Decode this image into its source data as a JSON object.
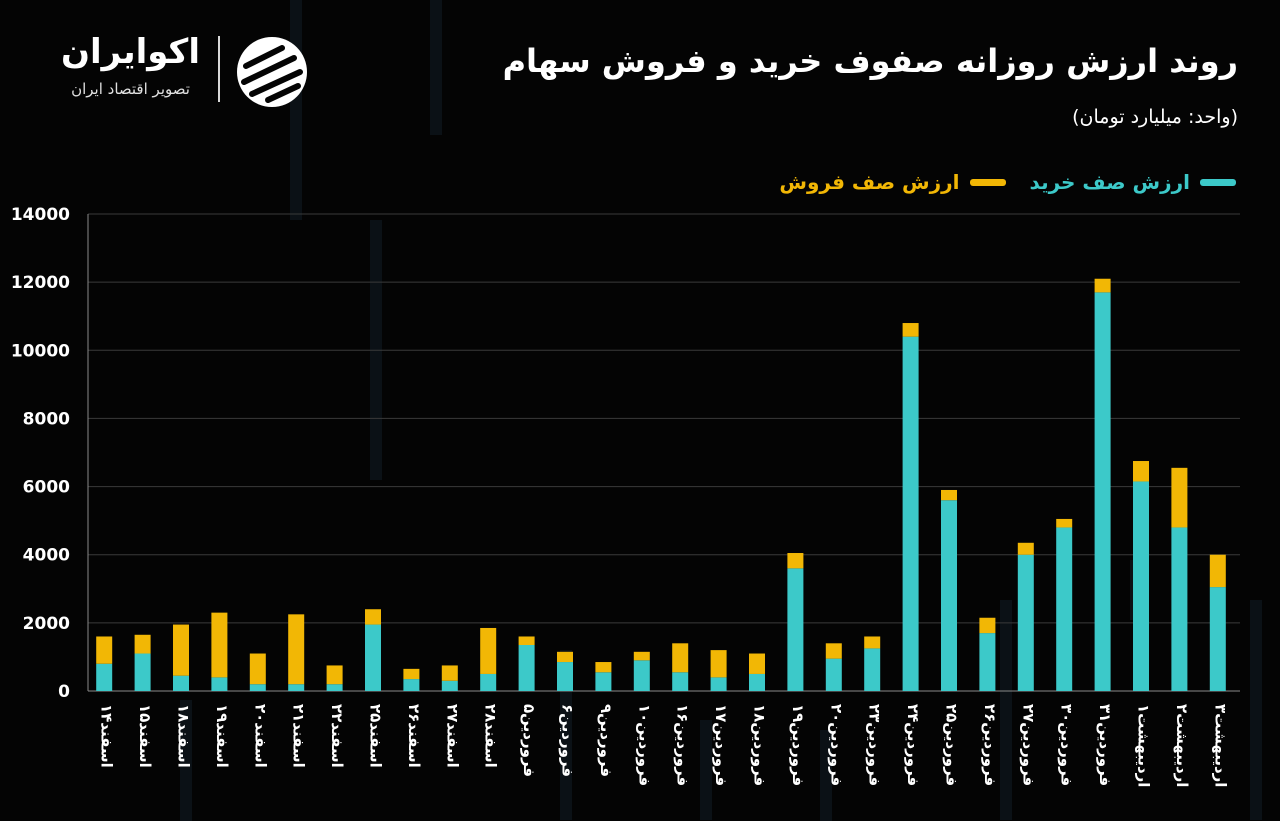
{
  "title": "روند ارزش روزانه صفوف خرید و فروش سهام",
  "unit": "(واحد: میلیارد تومان)",
  "brand": {
    "name": "اکوایران",
    "tagline": "تصویر اقتصاد ایران",
    "logo_icon": "ecoiran-stripes-icon"
  },
  "colors": {
    "buy": "#3cc9c9",
    "sell": "#f2b705",
    "grid": "#3a3a3a",
    "axis": "#8a8a8a"
  },
  "chart_data": {
    "type": "bar",
    "stacked": true,
    "ylim": [
      0,
      14000
    ],
    "yticks": [
      "0",
      "2000",
      "4000",
      "6000",
      "8000",
      "10000",
      "12000",
      "14000"
    ],
    "grid": true,
    "legend_position": "top-right",
    "categories": [
      "اسفند۱۴",
      "اسفند۱۵",
      "اسفند۱۸",
      "اسفند۱۹",
      "اسفند۲۰",
      "اسفند۲۱",
      "اسفند۲۲",
      "اسفند۲۵",
      "اسفند۲۶",
      "اسفند۲۷",
      "اسفند۲۸",
      "فروردین۵",
      "فروردین۶",
      "فروردین۹",
      "فروردین۱۰",
      "فروردین۱۶",
      "فروردین۱۷",
      "فروردین۱۸",
      "فروردین۱۹",
      "فروردین۲۰",
      "فروردین۲۳",
      "فروردین۲۴",
      "فروردین۲۵",
      "فروردین۲۶",
      "فروردین۲۷",
      "فروردین۳۰",
      "فروردین۳۱",
      "اردیبهشت۱",
      "اردیبهشت۲",
      "اردیبهشت۳"
    ],
    "series": [
      {
        "name": "ارزش صف خرید",
        "values": [
          800,
          1100,
          450,
          400,
          200,
          200,
          200,
          1950,
          350,
          300,
          500,
          1350,
          850,
          550,
          900,
          550,
          400,
          500,
          3600,
          950,
          1250,
          10400,
          5600,
          1700,
          4000,
          4800,
          11700,
          6150,
          4800,
          3050
        ]
      },
      {
        "name": "ارزش صف فروش",
        "values": [
          800,
          550,
          1500,
          1900,
          900,
          2050,
          550,
          450,
          300,
          450,
          1350,
          250,
          300,
          300,
          250,
          850,
          800,
          600,
          450,
          450,
          350,
          400,
          300,
          450,
          350,
          250,
          400,
          600,
          1750,
          950
        ]
      }
    ]
  }
}
